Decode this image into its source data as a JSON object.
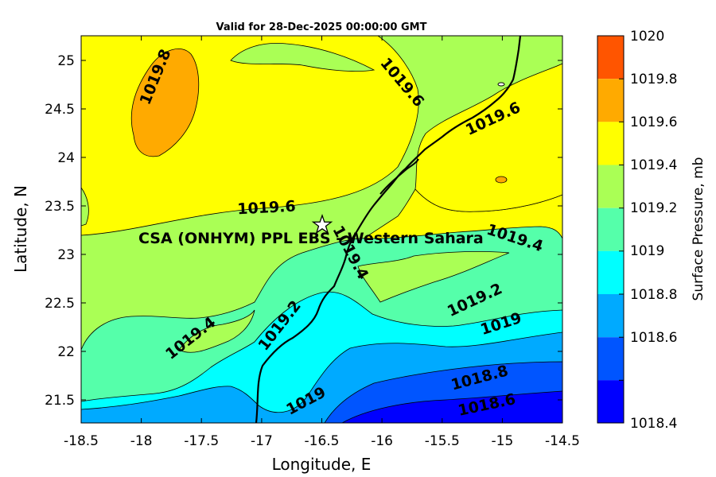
{
  "title": "Valid for 28-Dec-2025 00:00:00 GMT",
  "site_label": "CSA (ONHYM) PPL EBS - Western Sahara",
  "x_axis": {
    "label": "Longitude, E",
    "ticks": [
      "-18.5",
      "-18",
      "-17.5",
      "-17",
      "-16.5",
      "-16",
      "-15.5",
      "-15",
      "-14.5"
    ]
  },
  "y_axis": {
    "label": "Latitude, N",
    "ticks": [
      "25",
      "24.5",
      "24",
      "23.5",
      "23",
      "22.5",
      "22",
      "21.5"
    ]
  },
  "colorbar": {
    "label": "Surface Pressure, mb",
    "ticks": [
      "1020",
      "1019.8",
      "1019.6",
      "1019.4",
      "1019.2",
      "1019",
      "1018.8",
      "1018.6",
      "1018.4"
    ],
    "colors": [
      "#ff5500",
      "#ffaa00",
      "#ffff00",
      "#aaff55",
      "#55ffaa",
      "#00ffff",
      "#00aaff",
      "#0055ff",
      "#0000ff"
    ]
  },
  "contour_labels": {
    "l1": "1019.8",
    "l2": "1019.6",
    "l3": "1019.6",
    "l4": "1019.6",
    "l5": "1019.4",
    "l6": "1019.4",
    "l7": "1019.4",
    "l8": "1019.2",
    "l9": "1019.2",
    "l10": "1019",
    "l11": "1019",
    "l12": "1018.8",
    "l13": "1018.6"
  },
  "marker": {
    "icon": "star-icon",
    "longitude": -16.5,
    "latitude": 23.28
  }
}
